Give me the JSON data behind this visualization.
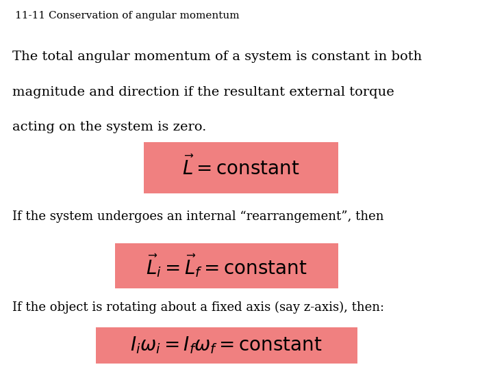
{
  "title": "11-11 Conservation of angular momentum",
  "title_bg": "#f08080",
  "bg_color": "#ffffff",
  "box1_bg": "#c8c8ff",
  "box1_line1": "The total angular momentum of a system is constant in both",
  "box1_line2": "magnitude and direction if the resultant external torque",
  "box1_line3": "acting on the system is zero.",
  "box1_formula": "$\\vec{L} = {\\rm constant}$",
  "box1_formula_bg": "#f08080",
  "box2_bg": "#c8ffff",
  "box2_text": "If the system undergoes an internal “rearrangement”, then",
  "box2_formula": "$\\vec{L}_i = \\vec{L}_f = {\\rm constant}$",
  "box2_formula_bg": "#f08080",
  "box3_bg": "#ffffcc",
  "box3_text": "If the object is rotating about a fixed axis (say z-axis), then:",
  "box3_formula": "$I_i\\omega_i = I_f\\omega_f = {\\rm constant}$",
  "box3_formula_bg": "#f08080",
  "border_color": "#888888"
}
